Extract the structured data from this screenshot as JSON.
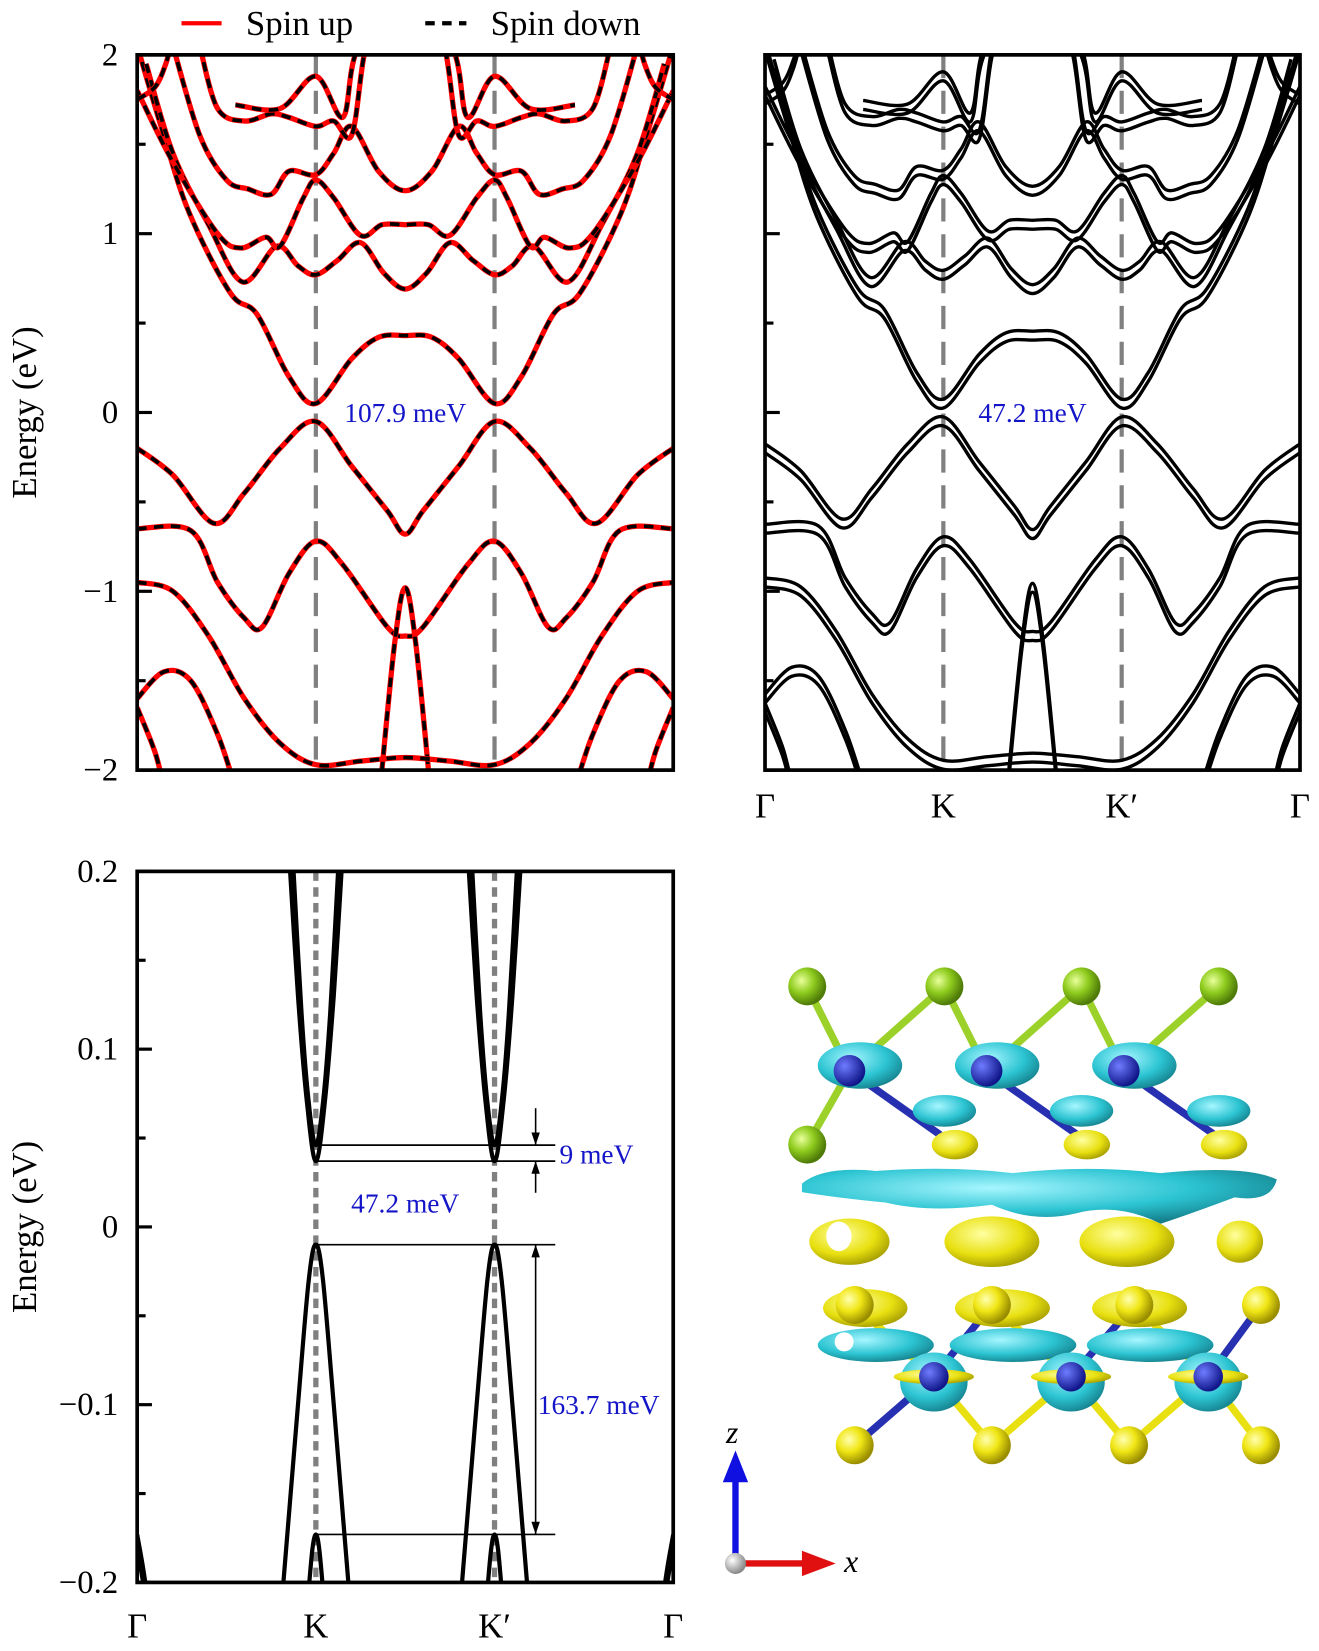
{
  "legend": [
    {
      "name": "Spin up",
      "color": "#ff0000",
      "style": "solid"
    },
    {
      "name": "Spin down",
      "color": "#000000",
      "style": "dashed"
    }
  ],
  "colors": {
    "annotation": "#1414c8",
    "kline": "#808080",
    "spin_up": "#ff0000",
    "band": "#000000"
  },
  "chart_data": [
    {
      "panel": "top-left",
      "type": "line",
      "title": "",
      "ylabel": "Energy (eV)",
      "ylim": [
        -2,
        2
      ],
      "yticks": [
        2,
        1,
        0,
        -1,
        -2
      ],
      "ytick_labels": [
        "2",
        "1",
        "0",
        "−1",
        "−2"
      ],
      "minor_ytick_step": 0.5,
      "xticks": [
        0,
        1,
        2,
        3
      ],
      "xtick_labels": [
        "Γ",
        "K",
        "K′",
        "Γ"
      ],
      "show_xtick_labels": false,
      "high_symmetry_lines": [
        1,
        2
      ],
      "symmetric_about_k": 1.5,
      "annotations": [
        {
          "text": "107.9 meV",
          "k": 1.5,
          "E": 0
        }
      ],
      "series_style": "spin-up red solid overlaid by spin-down black dashed",
      "bands": [
        [
          [
            0,
            2.05
          ],
          [
            0.14,
            1.58
          ],
          [
            0.29,
            1.12
          ],
          [
            0.52,
            0.67
          ],
          [
            0.67,
            0.55
          ],
          [
            0.85,
            0.2
          ],
          [
            1,
            0.05
          ],
          [
            1.2,
            0.3
          ],
          [
            1.35,
            0.42
          ],
          [
            1.5,
            0.43
          ]
        ],
        [
          [
            0.05,
            1.95
          ],
          [
            0.2,
            1.45
          ],
          [
            0.4,
            1.05
          ],
          [
            0.59,
            0.73
          ],
          [
            0.78,
            0.93
          ],
          [
            0.9,
            0.82
          ],
          [
            1,
            0.77
          ],
          [
            1.12,
            0.85
          ],
          [
            1.25,
            0.95
          ],
          [
            1.38,
            0.78
          ],
          [
            1.5,
            0.69
          ]
        ],
        [
          [
            0,
            1.8
          ],
          [
            0.2,
            1.4
          ],
          [
            0.45,
            1.0
          ],
          [
            0.58,
            0.92
          ],
          [
            0.72,
            0.98
          ],
          [
            0.8,
            0.93
          ],
          [
            0.93,
            1.2
          ],
          [
            1,
            1.3
          ],
          [
            1.1,
            1.2
          ],
          [
            1.25,
            0.99
          ],
          [
            1.37,
            1.05
          ],
          [
            1.5,
            1.05
          ]
        ],
        [
          [
            0.2,
            2.05
          ],
          [
            0.35,
            1.55
          ],
          [
            0.5,
            1.3
          ],
          [
            0.62,
            1.25
          ],
          [
            0.75,
            1.22
          ],
          [
            0.85,
            1.35
          ],
          [
            1,
            1.33
          ],
          [
            1.1,
            1.45
          ],
          [
            1.2,
            1.6
          ],
          [
            1.35,
            1.35
          ],
          [
            1.5,
            1.24
          ]
        ],
        [
          [
            0.35,
            2.05
          ],
          [
            0.45,
            1.7
          ],
          [
            0.6,
            1.63
          ],
          [
            0.75,
            1.67
          ],
          [
            0.85,
            1.65
          ],
          [
            1,
            1.6
          ],
          [
            1.1,
            1.63
          ],
          [
            1.2,
            1.55
          ],
          [
            1.27,
            2.0
          ],
          [
            1.35,
            2.3
          ],
          [
            1.5,
            2.4
          ]
        ],
        [
          [
            0.55,
            1.72
          ],
          [
            0.8,
            1.7
          ],
          [
            1,
            1.88
          ],
          [
            1.15,
            1.65
          ],
          [
            1.22,
            2.0
          ],
          [
            1.4,
            2.4
          ],
          [
            1.5,
            2.5
          ]
        ],
        [
          [
            0,
            1.75
          ],
          [
            0.1,
            1.82
          ],
          [
            0.16,
            1.95
          ],
          [
            0.2,
            2.1
          ]
        ],
        [
          [
            0,
            -0.2
          ],
          [
            0.2,
            -0.35
          ],
          [
            0.43,
            -0.62
          ],
          [
            0.6,
            -0.45
          ],
          [
            0.8,
            -0.2
          ],
          [
            1,
            -0.05
          ],
          [
            1.2,
            -0.3
          ],
          [
            1.4,
            -0.55
          ],
          [
            1.5,
            -0.68
          ]
        ],
        [
          [
            0,
            -0.65
          ],
          [
            0.3,
            -0.66
          ],
          [
            0.45,
            -0.95
          ],
          [
            0.6,
            -1.15
          ],
          [
            0.7,
            -1.2
          ],
          [
            0.85,
            -0.9
          ],
          [
            1,
            -0.72
          ],
          [
            1.15,
            -0.85
          ],
          [
            1.4,
            -1.2
          ],
          [
            1.5,
            -1.25
          ]
        ],
        [
          [
            1.36,
            -2.1
          ],
          [
            1.44,
            -1.3
          ],
          [
            1.5,
            -0.98
          ]
        ],
        [
          [
            0,
            -0.95
          ],
          [
            0.2,
            -1.0
          ],
          [
            0.4,
            -1.25
          ],
          [
            0.6,
            -1.6
          ],
          [
            0.8,
            -1.85
          ],
          [
            1,
            -1.97
          ],
          [
            1.25,
            -1.95
          ],
          [
            1.5,
            -1.93
          ]
        ],
        [
          [
            0,
            -1.6
          ],
          [
            0.15,
            -1.45
          ],
          [
            0.3,
            -1.5
          ],
          [
            0.45,
            -1.8
          ],
          [
            0.55,
            -2.1
          ]
        ],
        [
          [
            0,
            -1.65
          ],
          [
            0.1,
            -1.9
          ],
          [
            0.15,
            -2.1
          ]
        ]
      ]
    },
    {
      "panel": "top-right",
      "type": "line",
      "ylabel": "",
      "ylim": [
        -2,
        2
      ],
      "yticks": [
        2,
        1,
        0,
        -1,
        -2
      ],
      "ytick_labels": [],
      "minor_ytick_step": 0.5,
      "xticks": [
        0,
        1,
        2,
        3
      ],
      "xtick_labels": [
        "Γ",
        "K",
        "K′",
        "Γ"
      ],
      "show_xtick_labels": true,
      "high_symmetry_lines": [
        1,
        2
      ],
      "symmetric_about_k": 1.5,
      "annotations": [
        {
          "text": "47.2 meV",
          "k": 1.5,
          "E": 0
        }
      ],
      "bands_from_panel": "top-left",
      "soc_splitting_eV": 0.05
    },
    {
      "panel": "bottom-left",
      "type": "line",
      "ylabel": "Energy (eV)",
      "ylim": [
        -0.2,
        0.2
      ],
      "yticks": [
        0.2,
        0.1,
        0,
        -0.1,
        -0.2
      ],
      "ytick_labels": [
        "0.2",
        "0.1",
        "0",
        "−0.1",
        "−0.2"
      ],
      "minor_ytick_step": 0.05,
      "xticks": [
        0,
        1,
        2,
        3
      ],
      "xtick_labels": [
        "Γ",
        "K",
        "K′",
        "Γ"
      ],
      "show_xtick_labels": true,
      "high_symmetry_lines": [
        1,
        2
      ],
      "symmetric_about_k": 1.5,
      "levels_eV": [
        0.046,
        0.037,
        -0.01,
        -0.173
      ],
      "annotations": [
        {
          "text": "9 meV",
          "between": [
            0.037,
            0.046
          ]
        },
        {
          "text": "47.2 meV",
          "between": [
            -0.01,
            0.037
          ]
        },
        {
          "text": "163.7 meV",
          "between": [
            -0.173,
            -0.01
          ]
        }
      ],
      "bands": [
        [
          [
            0.85,
            0.21
          ],
          [
            0.9,
            0.13
          ],
          [
            0.95,
            0.07
          ],
          [
            1,
            0.037
          ],
          [
            1.05,
            0.07
          ],
          [
            1.1,
            0.13
          ],
          [
            1.15,
            0.21
          ]
        ],
        [
          [
            0.87,
            0.21
          ],
          [
            0.92,
            0.12
          ],
          [
            0.96,
            0.07
          ],
          [
            1,
            0.046
          ],
          [
            1.04,
            0.07
          ],
          [
            1.08,
            0.12
          ],
          [
            1.13,
            0.21
          ]
        ],
        [
          [
            0.81,
            -0.21
          ],
          [
            0.9,
            -0.1
          ],
          [
            0.96,
            -0.03
          ],
          [
            1,
            -0.01
          ],
          [
            1.04,
            -0.03
          ],
          [
            1.1,
            -0.1
          ],
          [
            1.19,
            -0.21
          ]
        ],
        [
          [
            0.955,
            -0.21
          ],
          [
            0.98,
            -0.182
          ],
          [
            1,
            -0.173
          ],
          [
            1.02,
            -0.182
          ],
          [
            1.045,
            -0.21
          ]
        ],
        [
          [
            0,
            -0.173
          ],
          [
            0.03,
            -0.19
          ],
          [
            0.06,
            -0.21
          ]
        ],
        [
          [
            0,
            -0.18
          ],
          [
            0.025,
            -0.195
          ],
          [
            0.05,
            -0.21
          ]
        ]
      ]
    }
  ],
  "structure": {
    "axis_z": "z",
    "axis_x": "x"
  }
}
